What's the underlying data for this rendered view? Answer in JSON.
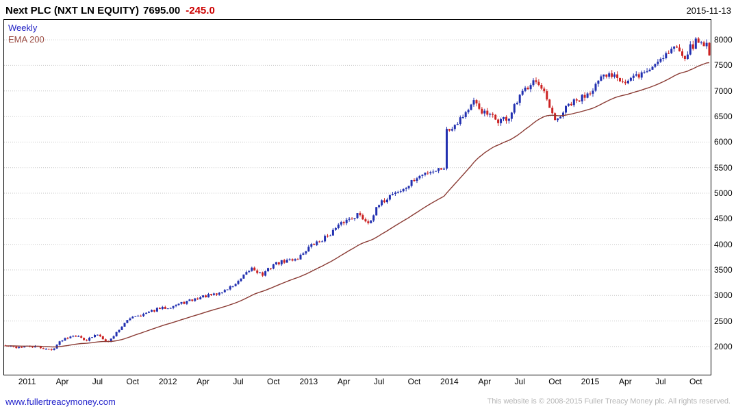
{
  "header": {
    "title": "Next PLC (NXT LN EQUITY)",
    "last_price": "7695.00",
    "change": "-245.0",
    "date": "2015-11-13"
  },
  "legend": {
    "interval": "Weekly",
    "overlay": "EMA 200"
  },
  "footer": {
    "link": "www.fullertreacymoney.com",
    "copyright": "This website is © 2008-2015 Fuller Treacy Money plc. All rights reserved."
  },
  "chart_data": {
    "type": "candlestick",
    "title": "Next PLC (NXT LN EQUITY) weekly candlestick chart with EMA 200 overlay",
    "interval": "Weekly",
    "overlay": "EMA 200",
    "ylim": [
      1450,
      8390
    ],
    "y_ticks": [
      2000,
      2500,
      3000,
      3500,
      4000,
      4500,
      5000,
      5500,
      6000,
      6500,
      7000,
      7500,
      8000
    ],
    "grid": true,
    "weeks_total": 261,
    "x_ticks": [
      {
        "week": 8,
        "label": "2011"
      },
      {
        "week": 21,
        "label": "Apr"
      },
      {
        "week": 34,
        "label": "Jul"
      },
      {
        "week": 47,
        "label": "Oct"
      },
      {
        "week": 60,
        "label": "2012"
      },
      {
        "week": 73,
        "label": "Apr"
      },
      {
        "week": 86,
        "label": "Jul"
      },
      {
        "week": 99,
        "label": "Oct"
      },
      {
        "week": 112,
        "label": "2013"
      },
      {
        "week": 125,
        "label": "Apr"
      },
      {
        "week": 138,
        "label": "Jul"
      },
      {
        "week": 151,
        "label": "Oct"
      },
      {
        "week": 164,
        "label": "2014"
      },
      {
        "week": 177,
        "label": "Apr"
      },
      {
        "week": 190,
        "label": "Jul"
      },
      {
        "week": 203,
        "label": "Oct"
      },
      {
        "week": 216,
        "label": "2015"
      },
      {
        "week": 229,
        "label": "Apr"
      },
      {
        "week": 242,
        "label": "Jul"
      },
      {
        "week": 255,
        "label": "Oct"
      }
    ],
    "close_anchors": [
      [
        0,
        2010
      ],
      [
        4,
        1985
      ],
      [
        8,
        2000
      ],
      [
        12,
        1990
      ],
      [
        17,
        1930
      ],
      [
        21,
        2140
      ],
      [
        25,
        2230
      ],
      [
        30,
        2130
      ],
      [
        34,
        2240
      ],
      [
        38,
        2090
      ],
      [
        43,
        2400
      ],
      [
        47,
        2600
      ],
      [
        51,
        2630
      ],
      [
        56,
        2730
      ],
      [
        60,
        2770
      ],
      [
        64,
        2830
      ],
      [
        69,
        2910
      ],
      [
        73,
        2980
      ],
      [
        78,
        3020
      ],
      [
        82,
        3130
      ],
      [
        86,
        3260
      ],
      [
        91,
        3540
      ],
      [
        95,
        3400
      ],
      [
        99,
        3610
      ],
      [
        104,
        3680
      ],
      [
        108,
        3730
      ],
      [
        112,
        3940
      ],
      [
        117,
        4090
      ],
      [
        121,
        4260
      ],
      [
        125,
        4440
      ],
      [
        130,
        4590
      ],
      [
        134,
        4430
      ],
      [
        138,
        4760
      ],
      [
        143,
        5010
      ],
      [
        147,
        5060
      ],
      [
        151,
        5260
      ],
      [
        156,
        5420
      ],
      [
        160,
        5470
      ],
      [
        162,
        5520
      ],
      [
        163,
        6230
      ],
      [
        164,
        6250
      ],
      [
        169,
        6530
      ],
      [
        173,
        6760
      ],
      [
        177,
        6560
      ],
      [
        182,
        6420
      ],
      [
        186,
        6470
      ],
      [
        190,
        6870
      ],
      [
        195,
        7260
      ],
      [
        199,
        6920
      ],
      [
        203,
        6380
      ],
      [
        208,
        6720
      ],
      [
        212,
        6820
      ],
      [
        216,
        7020
      ],
      [
        221,
        7260
      ],
      [
        225,
        7360
      ],
      [
        229,
        7160
      ],
      [
        234,
        7310
      ],
      [
        238,
        7420
      ],
      [
        242,
        7660
      ],
      [
        247,
        7860
      ],
      [
        251,
        7710
      ],
      [
        255,
        7960
      ],
      [
        259,
        7940
      ],
      [
        260,
        7695
      ]
    ],
    "prev_close": 7940,
    "last_close": 7695,
    "ema_period_weeks": 40,
    "noise_seed": 42,
    "colors": {
      "up": "#2230b0",
      "down": "#cc2222",
      "ema": "#8a3b34",
      "grid": "#c6c6c6",
      "change_negative": "#cc0000"
    }
  }
}
